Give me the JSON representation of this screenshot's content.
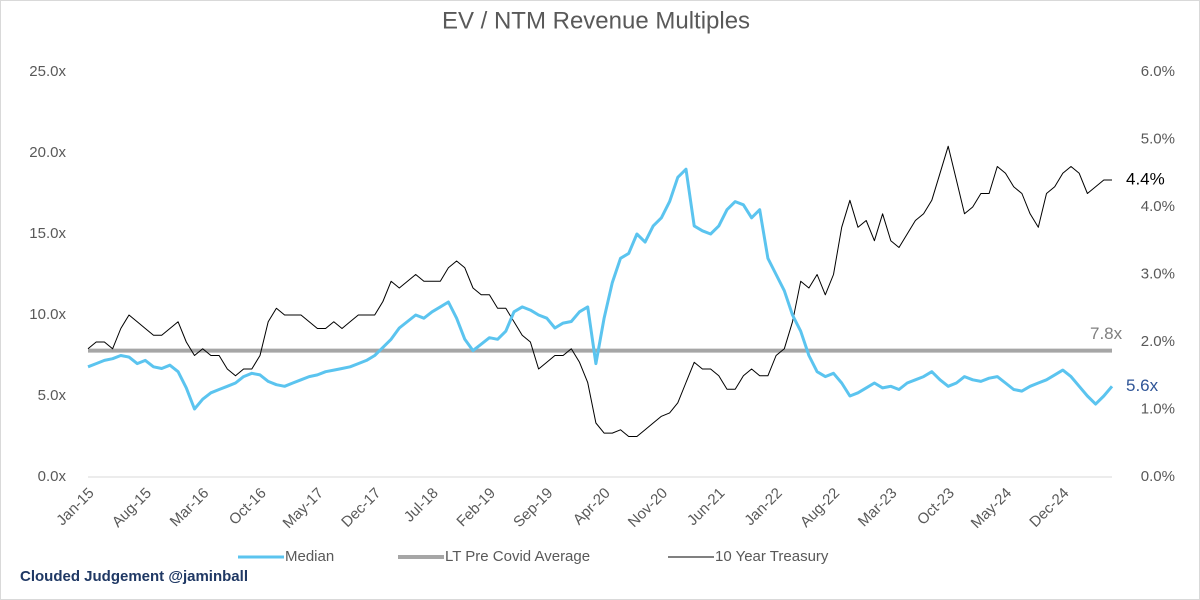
{
  "chart_data": {
    "type": "line",
    "title": "EV / NTM Revenue Multiples",
    "credit": "Clouded Judgement @jaminball",
    "categories": [
      "Jan-15",
      null,
      null,
      null,
      null,
      null,
      null,
      "Aug-15",
      null,
      null,
      null,
      null,
      null,
      null,
      "Mar-16",
      null,
      null,
      null,
      null,
      null,
      null,
      "Oct-16",
      null,
      null,
      null,
      null,
      null,
      null,
      "May-17",
      null,
      null,
      null,
      null,
      null,
      null,
      "Dec-17",
      null,
      null,
      null,
      null,
      null,
      null,
      "Jul-18",
      null,
      null,
      null,
      null,
      null,
      null,
      "Feb-19",
      null,
      null,
      null,
      null,
      null,
      null,
      "Sep-19",
      null,
      null,
      null,
      null,
      null,
      null,
      "Apr-20",
      null,
      null,
      null,
      null,
      null,
      null,
      "Nov-20",
      null,
      null,
      null,
      null,
      null,
      null,
      "Jun-21",
      null,
      null,
      null,
      null,
      null,
      null,
      "Jan-22",
      null,
      null,
      null,
      null,
      null,
      null,
      "Aug-22",
      null,
      null,
      null,
      null,
      null,
      null,
      "Mar-23",
      null,
      null,
      null,
      null,
      null,
      null,
      "Oct-23",
      null,
      null,
      null,
      null,
      null,
      null,
      "May-24",
      null,
      null,
      null,
      null,
      null,
      null,
      "Dec-24",
      null,
      null,
      null,
      null,
      null,
      null
    ],
    "ylim": [
      0,
      25
    ],
    "yticks": [
      {
        "value": 0,
        "label": "0.0x"
      },
      {
        "value": 5,
        "label": "5.0x"
      },
      {
        "value": 10,
        "label": "10.0x"
      },
      {
        "value": 15,
        "label": "15.0x"
      },
      {
        "value": 20,
        "label": "20.0x"
      },
      {
        "value": 25,
        "label": "25.0x"
      }
    ],
    "y2lim": [
      0,
      6
    ],
    "y2ticks": [
      {
        "value": 0,
        "label": "0.0%"
      },
      {
        "value": 1,
        "label": "1.0%"
      },
      {
        "value": 2,
        "label": "2.0%"
      },
      {
        "value": 3,
        "label": "3.0%"
      },
      {
        "value": 4,
        "label": "4.0%"
      },
      {
        "value": 5,
        "label": "5.0%"
      },
      {
        "value": 6,
        "label": "6.0%"
      }
    ],
    "legend": "bottom",
    "series": [
      {
        "name": "Median",
        "color": "#5bc4ef",
        "width": 3,
        "end_label": "5.6x",
        "end_label_color": "#2f5597",
        "values": [
          6.8,
          7.0,
          7.2,
          7.3,
          7.5,
          7.4,
          7.0,
          7.2,
          6.8,
          6.7,
          6.9,
          6.5,
          5.5,
          4.2,
          4.8,
          5.2,
          5.4,
          5.6,
          5.8,
          6.2,
          6.4,
          6.3,
          5.9,
          5.7,
          5.6,
          5.8,
          6.0,
          6.2,
          6.3,
          6.5,
          6.6,
          6.7,
          6.8,
          7.0,
          7.2,
          7.5,
          8.0,
          8.5,
          9.2,
          9.6,
          10.0,
          9.8,
          10.2,
          10.5,
          10.8,
          9.8,
          8.5,
          7.8,
          8.2,
          8.6,
          8.5,
          9.0,
          10.2,
          10.5,
          10.3,
          10.0,
          9.8,
          9.2,
          9.5,
          9.6,
          10.2,
          10.5,
          7.0,
          9.8,
          12.0,
          13.5,
          13.8,
          15.0,
          14.5,
          15.5,
          16.0,
          17.0,
          18.5,
          19.0,
          15.5,
          15.2,
          15.0,
          15.5,
          16.5,
          17.0,
          16.8,
          16.0,
          16.5,
          13.5,
          12.5,
          11.5,
          10.0,
          9.0,
          7.5,
          6.5,
          6.2,
          6.4,
          5.8,
          5.0,
          5.2,
          5.5,
          5.8,
          5.5,
          5.6,
          5.4,
          5.8,
          6.0,
          6.2,
          6.5,
          6.0,
          5.6,
          5.8,
          6.2,
          6.0,
          5.9,
          6.1,
          6.2,
          5.8,
          5.4,
          5.3,
          5.6,
          5.8,
          6.0,
          6.3,
          6.6,
          6.2,
          5.6,
          5.0,
          4.5,
          5.0,
          5.6
        ]
      },
      {
        "name": "LT Pre Covid Average",
        "color": "#a6a6a6",
        "width": 4,
        "end_label": "7.8x",
        "end_label_color": "#7f7f7f",
        "values": [
          7.8,
          7.8,
          7.8,
          7.8,
          7.8,
          7.8,
          7.8,
          7.8,
          7.8,
          7.8,
          7.8,
          7.8,
          7.8,
          7.8,
          7.8,
          7.8,
          7.8,
          7.8,
          7.8,
          7.8,
          7.8,
          7.8,
          7.8,
          7.8,
          7.8,
          7.8,
          7.8,
          7.8,
          7.8,
          7.8,
          7.8,
          7.8,
          7.8,
          7.8,
          7.8,
          7.8,
          7.8,
          7.8,
          7.8,
          7.8,
          7.8,
          7.8,
          7.8,
          7.8,
          7.8,
          7.8,
          7.8,
          7.8,
          7.8,
          7.8,
          7.8,
          7.8,
          7.8,
          7.8,
          7.8,
          7.8,
          7.8,
          7.8,
          7.8,
          7.8,
          7.8,
          7.8,
          7.8,
          7.8,
          7.8,
          7.8,
          7.8,
          7.8,
          7.8,
          7.8,
          7.8,
          7.8,
          7.8,
          7.8,
          7.8,
          7.8,
          7.8,
          7.8,
          7.8,
          7.8,
          7.8,
          7.8,
          7.8,
          7.8,
          7.8,
          7.8,
          7.8,
          7.8,
          7.8,
          7.8,
          7.8,
          7.8,
          7.8,
          7.8,
          7.8,
          7.8,
          7.8,
          7.8,
          7.8,
          7.8,
          7.8,
          7.8,
          7.8,
          7.8,
          7.8,
          7.8,
          7.8,
          7.8,
          7.8,
          7.8,
          7.8,
          7.8,
          7.8,
          7.8,
          7.8,
          7.8,
          7.8,
          7.8,
          7.8,
          7.8,
          7.8,
          7.8,
          7.8,
          7.8,
          7.8,
          7.8
        ]
      },
      {
        "name": "10 Year Treasury",
        "color": "#000000",
        "width": 1,
        "axis": "y2",
        "end_label": "4.4%",
        "end_label_color": "#000000",
        "values": [
          1.9,
          2.0,
          2.0,
          1.9,
          2.2,
          2.4,
          2.3,
          2.2,
          2.1,
          2.1,
          2.2,
          2.3,
          2.0,
          1.8,
          1.9,
          1.8,
          1.8,
          1.6,
          1.5,
          1.6,
          1.6,
          1.8,
          2.3,
          2.5,
          2.4,
          2.4,
          2.4,
          2.3,
          2.2,
          2.2,
          2.3,
          2.2,
          2.3,
          2.4,
          2.4,
          2.4,
          2.6,
          2.9,
          2.8,
          2.9,
          3.0,
          2.9,
          2.9,
          2.9,
          3.1,
          3.2,
          3.1,
          2.8,
          2.7,
          2.7,
          2.5,
          2.5,
          2.3,
          2.1,
          2.0,
          1.6,
          1.7,
          1.8,
          1.8,
          1.9,
          1.7,
          1.4,
          0.8,
          0.65,
          0.65,
          0.7,
          0.6,
          0.6,
          0.7,
          0.8,
          0.9,
          0.95,
          1.1,
          1.4,
          1.7,
          1.6,
          1.6,
          1.5,
          1.3,
          1.3,
          1.5,
          1.6,
          1.5,
          1.5,
          1.8,
          1.9,
          2.3,
          2.9,
          2.8,
          3.0,
          2.7,
          3.0,
          3.7,
          4.1,
          3.7,
          3.8,
          3.5,
          3.9,
          3.5,
          3.4,
          3.6,
          3.8,
          3.9,
          4.1,
          4.5,
          4.9,
          4.4,
          3.9,
          4.0,
          4.2,
          4.2,
          4.6,
          4.5,
          4.3,
          4.2,
          3.9,
          3.7,
          4.2,
          4.3,
          4.5,
          4.6,
          4.5,
          4.2,
          4.3,
          4.4,
          4.4
        ]
      }
    ]
  }
}
